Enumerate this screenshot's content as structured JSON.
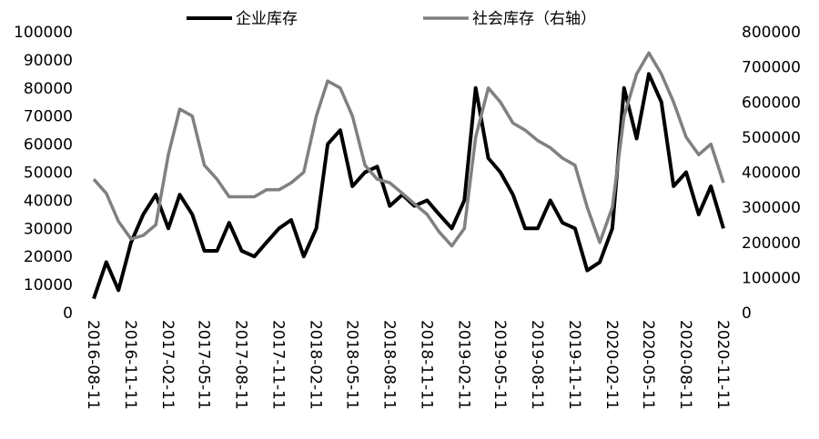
{
  "chart_data": {
    "type": "line",
    "x": [
      "2016-08-11",
      "2016-09-11",
      "2016-10-11",
      "2016-11-11",
      "2016-12-11",
      "2017-01-11",
      "2017-02-11",
      "2017-03-11",
      "2017-04-11",
      "2017-05-11",
      "2017-06-11",
      "2017-07-11",
      "2017-08-11",
      "2017-09-11",
      "2017-10-11",
      "2017-11-11",
      "2017-12-11",
      "2018-01-11",
      "2018-02-11",
      "2018-03-11",
      "2018-04-11",
      "2018-05-11",
      "2018-06-11",
      "2018-07-11",
      "2018-08-11",
      "2018-09-11",
      "2018-10-11",
      "2018-11-11",
      "2018-12-11",
      "2019-01-11",
      "2019-02-11",
      "2019-03-11",
      "2019-04-11",
      "2019-05-11",
      "2019-06-11",
      "2019-07-11",
      "2019-08-11",
      "2019-09-11",
      "2019-10-11",
      "2019-11-11",
      "2019-12-11",
      "2020-01-11",
      "2020-02-11",
      "2020-03-11",
      "2020-04-11",
      "2020-05-11",
      "2020-06-11",
      "2020-07-11",
      "2020-08-11",
      "2020-09-11",
      "2020-10-11",
      "2020-11-11"
    ],
    "series": [
      {
        "name": "企业库存",
        "color": "#000000",
        "values": [
          5000,
          18000,
          8000,
          25000,
          35000,
          42000,
          30000,
          42000,
          35000,
          22000,
          22000,
          32000,
          22000,
          20000,
          25000,
          30000,
          33000,
          20000,
          30000,
          60000,
          65000,
          45000,
          50000,
          52000,
          38000,
          42000,
          38000,
          40000,
          35000,
          30000,
          40000,
          80000,
          55000,
          50000,
          42000,
          30000,
          30000,
          40000,
          32000,
          30000,
          15000,
          18000,
          30000,
          80000,
          62000,
          85000,
          75000,
          45000,
          50000,
          35000,
          45000,
          30000
        ]
      },
      {
        "name": "社会库存（右轴）",
        "color": "#808080",
        "axis": "y2",
        "values": [
          380000,
          340000,
          260000,
          210000,
          220000,
          250000,
          450000,
          580000,
          560000,
          420000,
          380000,
          330000,
          330000,
          330000,
          350000,
          350000,
          370000,
          400000,
          560000,
          660000,
          640000,
          560000,
          420000,
          380000,
          370000,
          340000,
          310000,
          280000,
          230000,
          190000,
          240000,
          500000,
          640000,
          600000,
          540000,
          520000,
          490000,
          470000,
          440000,
          420000,
          300000,
          200000,
          300000,
          560000,
          680000,
          740000,
          680000,
          600000,
          500000,
          450000,
          480000,
          370000
        ]
      }
    ],
    "xlim": [
      "2016-08-11",
      "2020-11-11"
    ],
    "xticks": [
      "2016-08-11",
      "2016-11-11",
      "2017-02-11",
      "2017-05-11",
      "2017-08-11",
      "2017-11-11",
      "2018-02-11",
      "2018-05-11",
      "2018-08-11",
      "2018-11-11",
      "2019-02-11",
      "2019-05-11",
      "2019-08-11",
      "2019-11-11",
      "2020-02-11",
      "2020-05-11",
      "2020-08-11",
      "2020-11-11"
    ],
    "ylim": [
      0,
      100000
    ],
    "yticks": [
      0,
      10000,
      20000,
      30000,
      40000,
      50000,
      60000,
      70000,
      80000,
      90000,
      100000
    ],
    "y2lim": [
      0,
      800000
    ],
    "y2ticks": [
      0,
      100000,
      200000,
      300000,
      400000,
      500000,
      600000,
      700000,
      800000
    ],
    "legend": "top",
    "grid": false
  }
}
